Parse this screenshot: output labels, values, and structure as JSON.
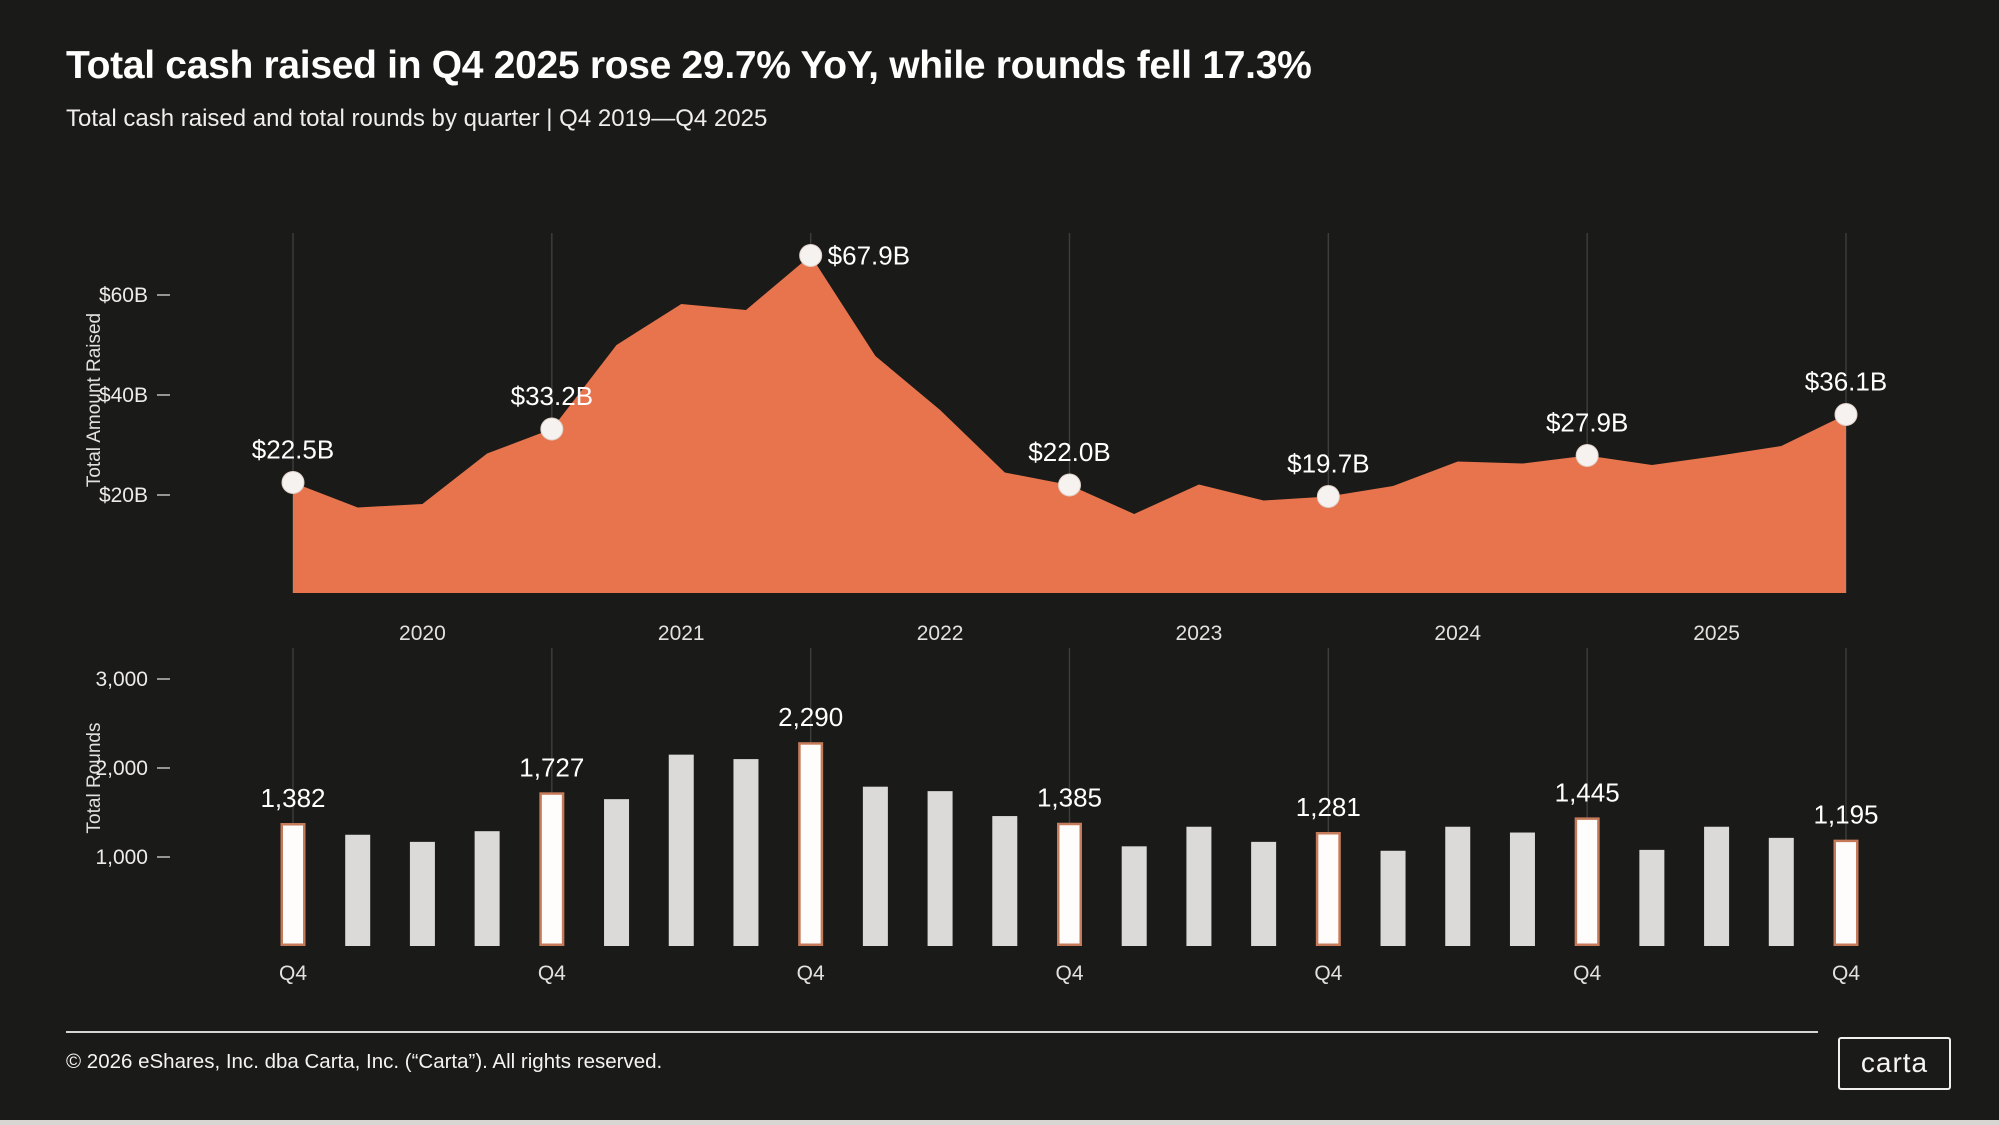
{
  "title": "Total cash raised in Q4 2025 rose 29.7% YoY, while rounds fell 17.3%",
  "subtitle": "Total cash raised and total rounds by quarter | Q4 2019—Q4 2025",
  "colors": {
    "background": "#1A1A18",
    "accent_orange": "#E7744D",
    "bar_gray": "#DBDAD8",
    "highlight_fill": "#FFFDFB",
    "highlight_stroke": "#C57B59",
    "grid": "#3E3E3C",
    "text_primary": "#FFFFFF",
    "text_secondary": "#E3E1DE",
    "tick_text": "#EDEBE9",
    "dash": "#979592",
    "dot_fill": "#F6F2EF",
    "dot_stroke": "#E0D2CA",
    "footer_line": "#D8D6D3",
    "bottom_strip": "#D8D6D2"
  },
  "chart_data": [
    {
      "type": "area",
      "name": "total-amount-raised",
      "ylabel": "Total Amount Raised",
      "x": [
        "Q4 2019",
        "Q1 2020",
        "Q2 2020",
        "Q3 2020",
        "Q4 2020",
        "Q1 2021",
        "Q2 2021",
        "Q3 2021",
        "Q4 2021",
        "Q1 2022",
        "Q2 2022",
        "Q3 2022",
        "Q4 2022",
        "Q1 2023",
        "Q2 2023",
        "Q3 2023",
        "Q4 2023",
        "Q1 2024",
        "Q2 2024",
        "Q3 2024",
        "Q4 2024",
        "Q1 2025",
        "Q2 2025",
        "Q3 2025",
        "Q4 2025"
      ],
      "values": [
        22.5,
        17.5,
        18.2,
        28.3,
        33.2,
        50.0,
        58.2,
        57.0,
        67.9,
        47.8,
        37.0,
        24.5,
        22.0,
        16.2,
        22.1,
        18.9,
        19.7,
        21.8,
        26.7,
        26.3,
        27.9,
        26.0,
        27.8,
        29.8,
        36.1
      ],
      "unit": "$B",
      "ylim": [
        0,
        72
      ],
      "grid": "vertical-at-Q4",
      "legend_position": "none",
      "labeled_points": [
        {
          "index": 0,
          "label": "$22.5B"
        },
        {
          "index": 4,
          "label": "$33.2B"
        },
        {
          "index": 8,
          "label": "$67.9B"
        },
        {
          "index": 12,
          "label": "$22.0B"
        },
        {
          "index": 16,
          "label": "$19.7B"
        },
        {
          "index": 20,
          "label": "$27.9B"
        },
        {
          "index": 24,
          "label": "$36.1B"
        }
      ],
      "yticks": [
        {
          "value": 20,
          "label": "$20B"
        },
        {
          "value": 40,
          "label": "$40B"
        },
        {
          "value": 60,
          "label": "$60B"
        }
      ],
      "year_labels": [
        "2020",
        "2021",
        "2022",
        "2023",
        "2024",
        "2025"
      ]
    },
    {
      "type": "bar",
      "name": "total-rounds",
      "ylabel": "Total Rounds",
      "x": [
        "Q4 2019",
        "Q1 2020",
        "Q2 2020",
        "Q3 2020",
        "Q4 2020",
        "Q1 2021",
        "Q2 2021",
        "Q3 2021",
        "Q4 2021",
        "Q1 2022",
        "Q2 2022",
        "Q3 2022",
        "Q4 2022",
        "Q1 2023",
        "Q2 2023",
        "Q3 2023",
        "Q4 2023",
        "Q1 2024",
        "Q2 2024",
        "Q3 2024",
        "Q4 2024",
        "Q1 2025",
        "Q2 2025",
        "Q3 2025",
        "Q4 2025"
      ],
      "values": [
        1382,
        1250,
        1170,
        1290,
        1727,
        1650,
        2150,
        2100,
        2290,
        1790,
        1740,
        1460,
        1385,
        1120,
        1340,
        1170,
        1281,
        1070,
        1340,
        1275,
        1445,
        1080,
        1340,
        1215,
        1195
      ],
      "ylim": [
        0,
        3350
      ],
      "grid": "vertical-at-Q4",
      "legend_position": "none",
      "xtick_label": "Q4",
      "labeled_points": [
        {
          "index": 0,
          "label": "1,382"
        },
        {
          "index": 4,
          "label": "1,727"
        },
        {
          "index": 8,
          "label": "2,290"
        },
        {
          "index": 12,
          "label": "1,385"
        },
        {
          "index": 16,
          "label": "1,281"
        },
        {
          "index": 20,
          "label": "1,445"
        },
        {
          "index": 24,
          "label": "1,195"
        }
      ],
      "yticks": [
        {
          "value": 1000,
          "label": "1,000"
        },
        {
          "value": 2000,
          "label": "2,000"
        },
        {
          "value": 3000,
          "label": "3,000"
        }
      ]
    }
  ],
  "footer": {
    "copyright": "© 2026 eShares, Inc. dba Carta, Inc. (“Carta”). All rights reserved.",
    "logo": "carta"
  }
}
